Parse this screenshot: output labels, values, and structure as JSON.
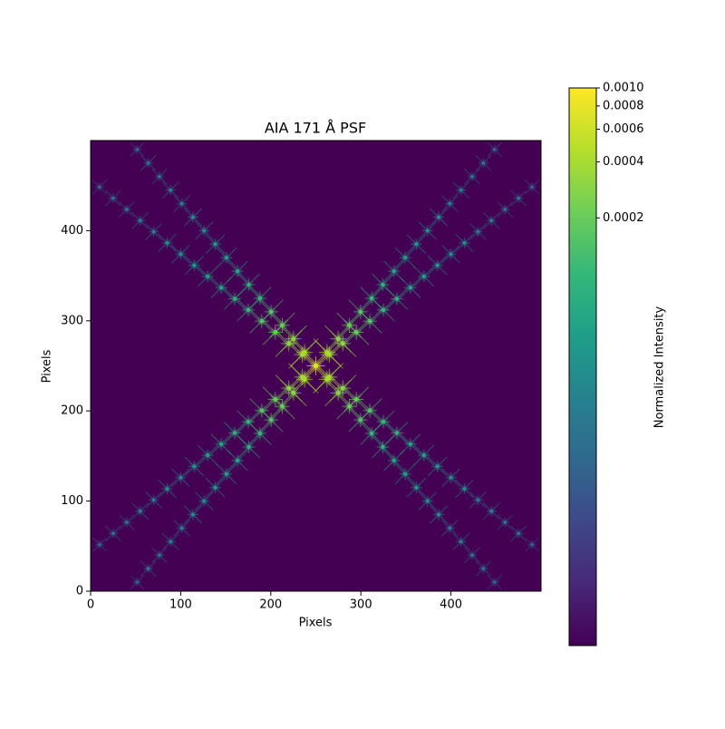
{
  "chart_data": {
    "type": "heatmap",
    "title": "AIA 171 Å PSF",
    "xlabel": "Pixels",
    "ylabel": "Pixels",
    "xlim": [
      0,
      500
    ],
    "ylim": [
      0,
      500
    ],
    "xticks": [
      0,
      100,
      200,
      300,
      400
    ],
    "yticks": [
      0,
      100,
      200,
      300,
      400
    ],
    "colormap": "viridis",
    "color_scale": "log",
    "clim": [
      1e-06,
      0.001
    ],
    "colorbar_label": "Normalized Intensity",
    "colorbar_ticks": [
      0.0002,
      0.0004,
      0.0006,
      0.0008,
      {
        "value": 0.001,
        "label": "0.0010"
      }
    ],
    "spots": [
      {
        "x": [
          250
        ],
        "y": [
          250
        ],
        "values": [
          0.001
        ]
      },
      {
        "x": [
          237.6,
          225.2,
          212.8,
          200.4,
          188,
          175.6,
          163.2,
          150.8,
          138.4,
          126,
          113.6,
          101.2,
          88.8,
          76.4,
          64,
          51.6
        ],
        "y": [
          265,
          280,
          295,
          310,
          325,
          340,
          355,
          370,
          385,
          400,
          415,
          430,
          445,
          460,
          475,
          490
        ],
        "values": [
          0.0004,
          0.0003,
          0.0002,
          0.00015,
          0.0001,
          8e-05,
          6e-05,
          5e-05,
          4e-05,
          3e-05,
          3e-05,
          2e-05,
          2e-05,
          1.5e-05,
          1.5e-05,
          1e-05
        ]
      },
      {
        "x": [
          262.4,
          274.8,
          287.2,
          299.6,
          312,
          324.4,
          336.8,
          349.2,
          361.6,
          374,
          386.4,
          398.8,
          411.2,
          423.6,
          436,
          448.4
        ],
        "y": [
          235,
          220,
          205,
          190,
          175,
          160,
          145,
          130,
          115,
          100,
          85,
          70,
          55,
          40,
          25,
          10
        ],
        "values": [
          0.0004,
          0.0003,
          0.0002,
          0.00015,
          0.0001,
          8e-05,
          6e-05,
          5e-05,
          4e-05,
          3e-05,
          3e-05,
          2e-05,
          2e-05,
          1.5e-05,
          1.5e-05,
          1e-05
        ]
      },
      {
        "x": [
          262.4,
          274.8,
          287.2,
          299.6,
          312,
          324.4,
          336.8,
          349.2,
          361.6,
          374,
          386.4,
          398.8,
          411.2,
          423.6,
          436,
          448.4
        ],
        "y": [
          265,
          280,
          295,
          310,
          325,
          340,
          355,
          370,
          385,
          400,
          415,
          430,
          445,
          460,
          475,
          490
        ],
        "values": [
          0.0004,
          0.0003,
          0.0002,
          0.00015,
          0.0001,
          8e-05,
          6e-05,
          5e-05,
          4e-05,
          3e-05,
          3e-05,
          2e-05,
          2e-05,
          1.5e-05,
          1.5e-05,
          1e-05
        ]
      },
      {
        "x": [
          237.6,
          225.2,
          212.8,
          200.4,
          188,
          175.6,
          163.2,
          150.8,
          138.4,
          126,
          113.6,
          101.2,
          88.8,
          76.4,
          64,
          51.6
        ],
        "y": [
          235,
          220,
          205,
          190,
          175,
          160,
          145,
          130,
          115,
          100,
          85,
          70,
          55,
          40,
          25,
          10
        ],
        "values": [
          0.0004,
          0.0003,
          0.0002,
          0.00015,
          0.0001,
          8e-05,
          6e-05,
          5e-05,
          4e-05,
          3e-05,
          3e-05,
          2e-05,
          2e-05,
          1.5e-05,
          1.5e-05,
          1e-05
        ]
      },
      {
        "x": [
          235,
          220,
          205,
          190,
          175,
          160,
          145,
          130,
          115,
          100,
          85,
          70,
          55,
          40,
          25,
          10
        ],
        "y": [
          262.4,
          274.8,
          287.2,
          299.6,
          312,
          324.4,
          336.8,
          349.2,
          361.6,
          374,
          386.4,
          398.8,
          411.2,
          423.6,
          436,
          448.4
        ],
        "values": [
          0.0004,
          0.0003,
          0.0002,
          0.00015,
          0.0001,
          8e-05,
          6e-05,
          5e-05,
          4e-05,
          3e-05,
          3e-05,
          2e-05,
          2e-05,
          1.5e-05,
          1.5e-05,
          1e-05
        ]
      },
      {
        "x": [
          265,
          280,
          295,
          310,
          325,
          340,
          355,
          370,
          385,
          400,
          415,
          430,
          445,
          460,
          475,
          490
        ],
        "y": [
          237.6,
          225.2,
          212.8,
          200.4,
          188,
          175.6,
          163.2,
          150.8,
          138.4,
          126,
          113.6,
          101.2,
          88.8,
          76.4,
          64,
          51.6
        ],
        "values": [
          0.0004,
          0.0003,
          0.0002,
          0.00015,
          0.0001,
          8e-05,
          6e-05,
          5e-05,
          4e-05,
          3e-05,
          3e-05,
          2e-05,
          2e-05,
          1.5e-05,
          1.5e-05,
          1e-05
        ]
      },
      {
        "x": [
          265,
          280,
          295,
          310,
          325,
          340,
          355,
          370,
          385,
          400,
          415,
          430,
          445,
          460,
          475,
          490
        ],
        "y": [
          262.4,
          274.8,
          287.2,
          299.6,
          312,
          324.4,
          336.8,
          349.2,
          361.6,
          374,
          386.4,
          398.8,
          411.2,
          423.6,
          436,
          448.4
        ],
        "values": [
          0.0004,
          0.0003,
          0.0002,
          0.00015,
          0.0001,
          8e-05,
          6e-05,
          5e-05,
          4e-05,
          3e-05,
          3e-05,
          2e-05,
          2e-05,
          1.5e-05,
          1.5e-05,
          1e-05
        ]
      },
      {
        "x": [
          235,
          220,
          205,
          190,
          175,
          160,
          145,
          130,
          115,
          100,
          85,
          70,
          55,
          40,
          25,
          10
        ],
        "y": [
          237.6,
          225.2,
          212.8,
          200.4,
          188,
          175.6,
          163.2,
          150.8,
          138.4,
          126,
          113.6,
          101.2,
          88.8,
          76.4,
          64,
          51.6
        ],
        "values": [
          0.0004,
          0.0003,
          0.0002,
          0.00015,
          0.0001,
          8e-05,
          6e-05,
          5e-05,
          4e-05,
          3e-05,
          3e-05,
          2e-05,
          2e-05,
          1.5e-05,
          1.5e-05,
          1e-05
        ]
      }
    ]
  }
}
